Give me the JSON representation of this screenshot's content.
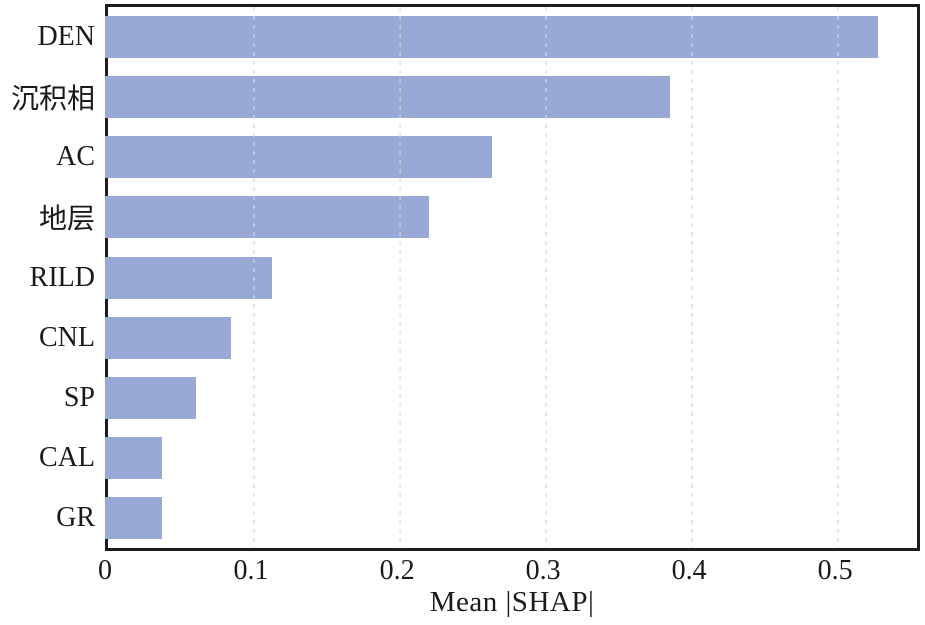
{
  "chart_data": {
    "type": "bar",
    "orientation": "horizontal",
    "title": "",
    "xlabel": "Mean |SHAP|",
    "ylabel": "",
    "categories": [
      "DEN",
      "沉积相",
      "AC",
      "地层",
      "RILD",
      "CNL",
      "SP",
      "CAL",
      "GR"
    ],
    "values": [
      0.527,
      0.385,
      0.263,
      0.22,
      0.112,
      0.084,
      0.06,
      0.037,
      0.037
    ],
    "xlim": [
      0,
      0.554
    ],
    "xticks": [
      0,
      0.1,
      0.2,
      0.3,
      0.4,
      0.5
    ],
    "xtick_labels": [
      "0",
      "0.1",
      "0.2",
      "0.3",
      "0.4",
      "0.5"
    ],
    "grid": "vertical-dashed",
    "legend": "none",
    "bar_color": "#99a9d5",
    "frame_color": "#1c1c22",
    "grid_color": "#d6d6d6",
    "text_color": "#1a1a1a"
  }
}
